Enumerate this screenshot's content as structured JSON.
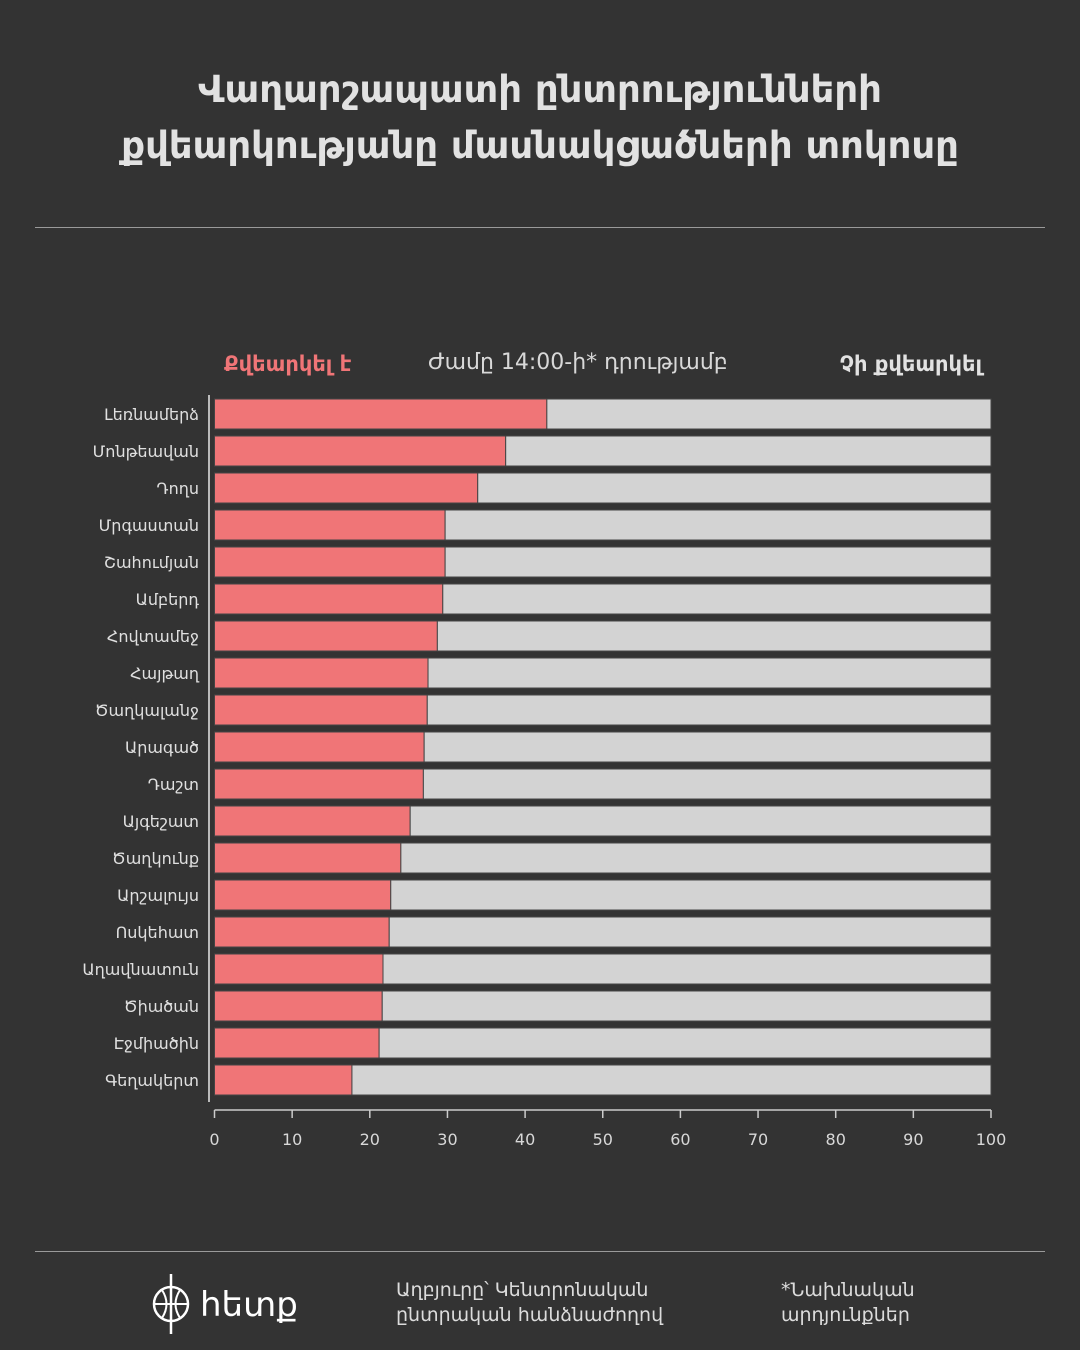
{
  "title": [
    "Վաղարշապատի ընտրությունների",
    "քվեարկությանը մասնակցածների տոկոսը"
  ],
  "legend": {
    "voted": "Քվեարկել է",
    "time_note": "Ժամը 14:00-ի* դրությամբ",
    "not_voted": "Չի քվեարկել"
  },
  "colors": {
    "background": "#333333",
    "voted": "#f07577",
    "not_voted": "#d3d3d3"
  },
  "chart_data": {
    "type": "bar",
    "orientation": "horizontal",
    "stacked": true,
    "categories": [
      "Լեռնամերձ",
      "Մոնթեավան",
      "Դողս",
      "Մրգաստան",
      "Շահումյան",
      "Ամբերդ",
      "Հովտամեջ",
      "Հայթաղ",
      "Ծաղկալանջ",
      "Արագած",
      "Դաշտ",
      "Այգեշատ",
      "Ծաղկունք",
      "Արշալույս",
      "Ոսկեհատ",
      "Աղավնատուն",
      "Ծիածան",
      "Էջմիածին",
      "Գեղակերտ"
    ],
    "series": [
      {
        "name": "Քվեարկել է",
        "values": [
          42.8,
          37.5,
          33.9,
          29.7,
          29.7,
          29.4,
          28.7,
          27.5,
          27.4,
          27.0,
          26.9,
          25.2,
          24.0,
          22.7,
          22.5,
          21.7,
          21.6,
          21.2,
          17.7
        ]
      },
      {
        "name": "Չի քվեարկել",
        "values": [
          57.2,
          62.5,
          66.1,
          70.3,
          70.3,
          70.6,
          71.3,
          72.5,
          72.6,
          73.0,
          73.1,
          74.8,
          76.0,
          77.3,
          77.5,
          78.3,
          78.4,
          78.8,
          82.3
        ]
      }
    ],
    "xlim": [
      0,
      100
    ],
    "xticks": [
      "0",
      "10",
      "20",
      "30",
      "40",
      "50",
      "60",
      "70",
      "80",
      "90",
      "100"
    ],
    "grid": false,
    "legend_position": "top"
  },
  "footer": {
    "logo": "հետք",
    "source": [
      "Աղբյուրը՝ Կենտրոնական",
      "ընտրական հանձնաժողով"
    ],
    "note": [
      "*Նախնական",
      "արդյունքներ"
    ]
  }
}
